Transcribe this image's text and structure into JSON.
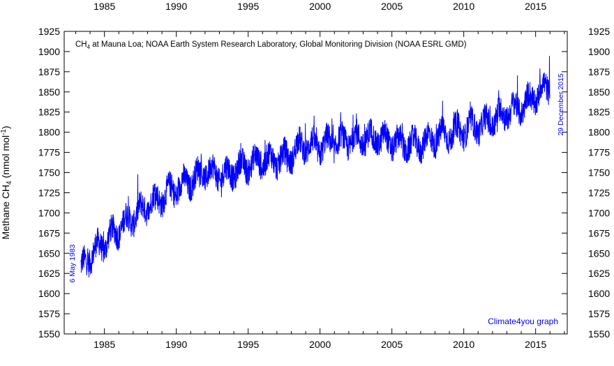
{
  "chart_data": {
    "type": "line",
    "title_prefix": "CH",
    "title_sub": "4",
    "title_rest": " at Mauna Loa; NOAA Earth System Research Laboratory, Global Monitoring Division (NOAA ESRL GMD)",
    "ylabel_prefix": "Methane CH",
    "ylabel_sub": "4",
    "ylabel_rest": " (nmol mol",
    "ylabel_sup": "-1",
    "ylabel_end": ")",
    "xlim": [
      1982.2,
      2017.2
    ],
    "ylim": [
      1550,
      1925
    ],
    "x_ticks": [
      1985,
      1990,
      1995,
      2000,
      2005,
      2010,
      2015
    ],
    "x_tick_labels": [
      "1985",
      "1990",
      "1995",
      "2000",
      "2005",
      "2010",
      "2015"
    ],
    "y_ticks": [
      1550,
      1575,
      1600,
      1625,
      1650,
      1675,
      1700,
      1725,
      1750,
      1775,
      1800,
      1825,
      1850,
      1875,
      1900,
      1925
    ],
    "y_tick_labels": [
      "1550",
      "1575",
      "1600",
      "1625",
      "1650",
      "1675",
      "1700",
      "1725",
      "1750",
      "1775",
      "1800",
      "1825",
      "1850",
      "1875",
      "1900",
      "1925"
    ],
    "start_label": "6 May 1983",
    "end_label": "29 December 2015",
    "credit": "Climate4you graph",
    "line_color": "#0000ff",
    "series": [
      {
        "x": [
          1983.35,
          1984.0,
          1984.5,
          1985.0,
          1985.5,
          1986.0,
          1986.5,
          1987.0,
          1987.5,
          1988.0,
          1988.5,
          1989.0,
          1989.5,
          1990.0,
          1990.5,
          1991.0,
          1991.5,
          1992.0,
          1992.5,
          1993.0,
          1993.5,
          1994.0,
          1994.5,
          1995.0,
          1995.5,
          1996.0,
          1996.5,
          1997.0,
          1997.5,
          1998.0,
          1998.5,
          1999.0,
          1999.5,
          2000.0,
          2000.5,
          2001.0,
          2001.5,
          2002.0,
          2002.5,
          2003.0,
          2003.5,
          2004.0,
          2004.5,
          2005.0,
          2005.5,
          2006.0,
          2006.5,
          2007.0,
          2007.5,
          2008.0,
          2008.5,
          2009.0,
          2009.5,
          2010.0,
          2010.5,
          2011.0,
          2011.5,
          2012.0,
          2012.5,
          2013.0,
          2013.5,
          2014.0,
          2014.5,
          2015.0,
          2015.5,
          2015.99
        ],
        "y": [
          1628,
          1648,
          1655,
          1663,
          1672,
          1680,
          1688,
          1695,
          1702,
          1710,
          1715,
          1720,
          1726,
          1730,
          1735,
          1740,
          1746,
          1752,
          1750,
          1748,
          1748,
          1752,
          1756,
          1760,
          1762,
          1765,
          1765,
          1766,
          1768,
          1772,
          1782,
          1785,
          1782,
          1782,
          1786,
          1788,
          1788,
          1790,
          1791,
          1792,
          1792,
          1793,
          1790,
          1788,
          1786,
          1784,
          1784,
          1786,
          1790,
          1793,
          1796,
          1798,
          1800,
          1803,
          1806,
          1808,
          1810,
          1815,
          1820,
          1825,
          1828,
          1832,
          1838,
          1845,
          1852,
          1860
        ]
      }
    ]
  }
}
